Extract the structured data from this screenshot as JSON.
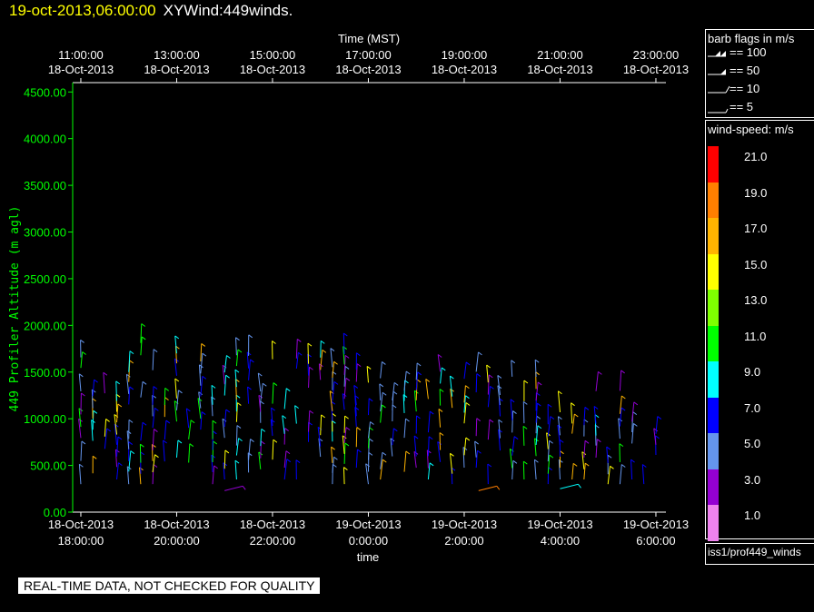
{
  "title": {
    "date": "19-oct-2013,06:00:00",
    "name": "XYWind:449winds."
  },
  "chart_data": {
    "type": "scatter",
    "title": "",
    "xlabel": "time",
    "x2label": "Time (MST)",
    "ylabel": "449 Profiler Altitude (m agl)",
    "ylim": [
      0,
      4600
    ],
    "xlim_utc_hours": [
      17.83,
      30.4
    ],
    "y_ticks": [
      "0.00",
      "500.00",
      "1000.00",
      "1500.00",
      "2000.00",
      "2500.00",
      "3000.00",
      "3500.00",
      "4000.00",
      "4500.00"
    ],
    "x_ticks": [
      {
        "date": "18-Oct-2013",
        "time": "18:00:00"
      },
      {
        "date": "18-Oct-2013",
        "time": "20:00:00"
      },
      {
        "date": "18-Oct-2013",
        "time": "22:00:00"
      },
      {
        "date": "19-Oct-2013",
        "time": "0:00:00"
      },
      {
        "date": "19-Oct-2013",
        "time": "2:00:00"
      },
      {
        "date": "19-Oct-2013",
        "time": "4:00:00"
      },
      {
        "date": "19-Oct-2013",
        "time": "6:00:00"
      }
    ],
    "x2_ticks": [
      {
        "time": "11:00:00",
        "date": "18-Oct-2013"
      },
      {
        "time": "13:00:00",
        "date": "18-Oct-2013"
      },
      {
        "time": "15:00:00",
        "date": "18-Oct-2013"
      },
      {
        "time": "17:00:00",
        "date": "18-Oct-2013"
      },
      {
        "time": "19:00:00",
        "date": "18-Oct-2013"
      },
      {
        "time": "21:00:00",
        "date": "18-Oct-2013"
      },
      {
        "time": "23:00:00",
        "date": "18-Oct-2013"
      }
    ],
    "profile_times_utc_hours": [
      18.0,
      18.25,
      18.5,
      18.75,
      19.0,
      19.25,
      19.5,
      19.75,
      20.0,
      20.25,
      20.5,
      20.75,
      21.0,
      21.25,
      21.5,
      21.75,
      22.0,
      22.25,
      22.5,
      22.75,
      23.0,
      23.25,
      23.5,
      23.75,
      24.0,
      24.25,
      24.5,
      24.75,
      25.0,
      25.25,
      25.5,
      25.75,
      26.0,
      26.25,
      26.5,
      26.75,
      27.0,
      27.25,
      27.5,
      27.75,
      28.0,
      28.25,
      28.5,
      28.75,
      29.0,
      29.25,
      29.5,
      29.75,
      30.0
    ],
    "profile_top_altitudes_m": [
      1750,
      1300,
      1750,
      1200,
      1750,
      1950,
      1750,
      1150,
      1750,
      1150,
      1750,
      1150,
      1750,
      1750,
      1750,
      1650,
      1750,
      2050,
      1750,
      1650,
      1750,
      1650,
      1750,
      1550,
      1550,
      1450,
      1550,
      1450,
      1550,
      1450,
      1600,
      1450,
      1550,
      1750,
      1550,
      1550,
      1550,
      1200,
      1550,
      1100,
      1200,
      1100,
      1050,
      1400,
      1050,
      1400,
      1050,
      950,
      950
    ],
    "wind_speed_range_ms": [
      3,
      12
    ],
    "barb_legend_title": "barb flags in m/s",
    "barb_legend": [
      "== 100",
      "== 50",
      "== 10",
      "== 5"
    ],
    "color_scale_title": "wind-speed: m/s",
    "color_scale": [
      {
        "value": "21.0",
        "color": "#ff0000"
      },
      {
        "value": "19.0",
        "color": "#ff7f00"
      },
      {
        "value": "17.0",
        "color": "#ffb400"
      },
      {
        "value": "15.0",
        "color": "#ffff00"
      },
      {
        "value": "13.0",
        "color": "#7fff00"
      },
      {
        "value": "11.0",
        "color": "#00ff00"
      },
      {
        "value": "9.0",
        "color": "#00ffff"
      },
      {
        "value": "7.0",
        "color": "#0000ff"
      },
      {
        "value": "5.0",
        "color": "#6495ed"
      },
      {
        "value": "3.0",
        "color": "#9400d3"
      },
      {
        "value": "1.0",
        "color": "#ee82ee"
      }
    ]
  },
  "source": "iss1/prof449_winds",
  "disclaimer": "REAL-TIME DATA, NOT CHECKED FOR QUALITY"
}
